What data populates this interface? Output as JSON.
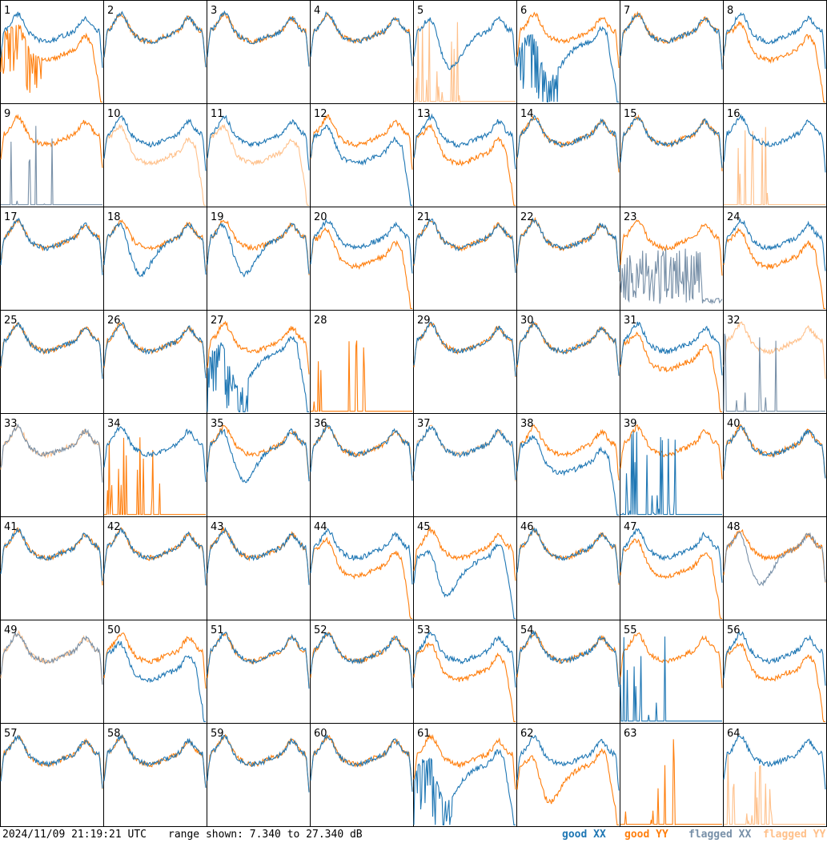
{
  "footer": {
    "timestamp": "2024/11/09 21:19:21 UTC",
    "range": "range shown: 7.340 to 27.340 dB"
  },
  "legend": {
    "good_xx": "good XX",
    "good_yy": "good YY",
    "flagged_xx": "flagged XX",
    "flagged_yy": "flagged YY"
  },
  "colors": {
    "good_xx": "#1f77b4",
    "good_yy": "#ff7f0e",
    "flagged_xx": "#7890a8",
    "flagged_yy": "#ffc08a"
  },
  "chart_data": {
    "type": "line",
    "grid": "8x8 small multiples",
    "ylim": [
      7.34,
      27.34
    ],
    "y_unit": "dB",
    "panels": [
      {
        "n": 1,
        "xx": "good",
        "yy": "good",
        "xx_shape": "flat",
        "yy_shape": "rolloff",
        "yy_noisy": true
      },
      {
        "n": 2,
        "xx": "good",
        "yy": "good",
        "xx_shape": "flat",
        "yy_shape": "flat"
      },
      {
        "n": 3,
        "xx": "good",
        "yy": "good",
        "xx_shape": "flat",
        "yy_shape": "flat"
      },
      {
        "n": 4,
        "xx": "good",
        "yy": "good",
        "xx_shape": "flat",
        "yy_shape": "flat"
      },
      {
        "n": 5,
        "xx": "good",
        "yy": "flagged",
        "xx_shape": "dip",
        "yy_shape": "spikes"
      },
      {
        "n": 6,
        "xx": "good",
        "yy": "good",
        "xx_shape": "dip_rolloff",
        "yy_shape": "flat",
        "xx_noisy": true
      },
      {
        "n": 7,
        "xx": "good",
        "yy": "good",
        "xx_shape": "flat",
        "yy_shape": "flat"
      },
      {
        "n": 8,
        "xx": "good",
        "yy": "good",
        "xx_shape": "flat",
        "yy_shape": "rolloff"
      },
      {
        "n": 9,
        "xx": "flagged",
        "yy": "good",
        "xx_shape": "spikes",
        "yy_shape": "flat"
      },
      {
        "n": 10,
        "xx": "good",
        "yy": "flagged",
        "xx_shape": "flat",
        "yy_shape": "rolloff"
      },
      {
        "n": 11,
        "xx": "good",
        "yy": "flagged",
        "xx_shape": "flat",
        "yy_shape": "rolloff"
      },
      {
        "n": 12,
        "xx": "good",
        "yy": "good",
        "xx_shape": "rolloff",
        "yy_shape": "flat"
      },
      {
        "n": 13,
        "xx": "good",
        "yy": "good",
        "xx_shape": "flat",
        "yy_shape": "rolloff"
      },
      {
        "n": 14,
        "xx": "good",
        "yy": "good",
        "xx_shape": "flat",
        "yy_shape": "flat"
      },
      {
        "n": 15,
        "xx": "good",
        "yy": "good",
        "xx_shape": "flat",
        "yy_shape": "flat"
      },
      {
        "n": 16,
        "xx": "good",
        "yy": "flagged",
        "xx_shape": "flat",
        "yy_shape": "spikes"
      },
      {
        "n": 17,
        "xx": "good",
        "yy": "good",
        "xx_shape": "flat",
        "yy_shape": "flat"
      },
      {
        "n": 18,
        "xx": "good",
        "yy": "good",
        "xx_shape": "dip",
        "yy_shape": "flat"
      },
      {
        "n": 19,
        "xx": "good",
        "yy": "good",
        "xx_shape": "dip",
        "yy_shape": "flat"
      },
      {
        "n": 20,
        "xx": "good",
        "yy": "good",
        "xx_shape": "flat",
        "yy_shape": "rolloff"
      },
      {
        "n": 21,
        "xx": "good",
        "yy": "good",
        "xx_shape": "flat",
        "yy_shape": "flat"
      },
      {
        "n": 22,
        "xx": "good",
        "yy": "good",
        "xx_shape": "flat",
        "yy_shape": "flat"
      },
      {
        "n": 23,
        "xx": "flagged",
        "yy": "good",
        "xx_shape": "noise",
        "yy_shape": "flat"
      },
      {
        "n": 24,
        "xx": "good",
        "yy": "good",
        "xx_shape": "flat",
        "yy_shape": "rolloff"
      },
      {
        "n": 25,
        "xx": "good",
        "yy": "good",
        "xx_shape": "flat",
        "yy_shape": "flat"
      },
      {
        "n": 26,
        "xx": "good",
        "yy": "good",
        "xx_shape": "flat",
        "yy_shape": "flat"
      },
      {
        "n": 27,
        "xx": "good",
        "yy": "good",
        "xx_shape": "dip_rolloff",
        "yy_shape": "flat",
        "xx_noisy": true
      },
      {
        "n": 28,
        "xx": "none",
        "yy": "good",
        "yy_shape": "spikes"
      },
      {
        "n": 29,
        "xx": "good",
        "yy": "good",
        "xx_shape": "flat",
        "yy_shape": "flat"
      },
      {
        "n": 30,
        "xx": "good",
        "yy": "good",
        "xx_shape": "flat",
        "yy_shape": "flat"
      },
      {
        "n": 31,
        "xx": "good",
        "yy": "good",
        "xx_shape": "flat",
        "yy_shape": "rolloff"
      },
      {
        "n": 32,
        "xx": "flagged",
        "yy": "flagged",
        "xx_shape": "spikes",
        "yy_shape": "flat"
      },
      {
        "n": 33,
        "xx": "flagged",
        "yy": "flagged",
        "xx_shape": "flat",
        "yy_shape": "flat"
      },
      {
        "n": 34,
        "xx": "good",
        "yy": "good",
        "xx_shape": "flat",
        "yy_shape": "spikes"
      },
      {
        "n": 35,
        "xx": "good",
        "yy": "good",
        "xx_shape": "dip",
        "yy_shape": "flat"
      },
      {
        "n": 36,
        "xx": "good",
        "yy": "good",
        "xx_shape": "flat",
        "yy_shape": "flat"
      },
      {
        "n": 37,
        "xx": "good",
        "yy": "flagged",
        "xx_shape": "flat",
        "yy_shape": "flat"
      },
      {
        "n": 38,
        "xx": "good",
        "yy": "good",
        "xx_shape": "rolloff",
        "yy_shape": "flat"
      },
      {
        "n": 39,
        "xx": "good",
        "yy": "good",
        "xx_shape": "spikes",
        "yy_shape": "flat"
      },
      {
        "n": 40,
        "xx": "good",
        "yy": "good",
        "xx_shape": "flat",
        "yy_shape": "flat"
      },
      {
        "n": 41,
        "xx": "good",
        "yy": "good",
        "xx_shape": "flat",
        "yy_shape": "flat"
      },
      {
        "n": 42,
        "xx": "good",
        "yy": "good",
        "xx_shape": "flat",
        "yy_shape": "flat"
      },
      {
        "n": 43,
        "xx": "good",
        "yy": "good",
        "xx_shape": "flat",
        "yy_shape": "flat"
      },
      {
        "n": 44,
        "xx": "good",
        "yy": "good",
        "xx_shape": "flat",
        "yy_shape": "rolloff"
      },
      {
        "n": 45,
        "xx": "good",
        "yy": "good",
        "xx_shape": "dip_rolloff",
        "yy_shape": "flat"
      },
      {
        "n": 46,
        "xx": "good",
        "yy": "good",
        "xx_shape": "flat",
        "yy_shape": "flat"
      },
      {
        "n": 47,
        "xx": "good",
        "yy": "good",
        "xx_shape": "flat",
        "yy_shape": "rolloff"
      },
      {
        "n": 48,
        "xx": "flagged",
        "yy": "good",
        "xx_shape": "dip",
        "yy_shape": "flat"
      },
      {
        "n": 49,
        "xx": "flagged",
        "yy": "flagged",
        "xx_shape": "flat",
        "yy_shape": "flat"
      },
      {
        "n": 50,
        "xx": "good",
        "yy": "good",
        "xx_shape": "rolloff",
        "yy_shape": "flat"
      },
      {
        "n": 51,
        "xx": "good",
        "yy": "good",
        "xx_shape": "flat",
        "yy_shape": "flat"
      },
      {
        "n": 52,
        "xx": "good",
        "yy": "good",
        "xx_shape": "flat",
        "yy_shape": "flat"
      },
      {
        "n": 53,
        "xx": "good",
        "yy": "good",
        "xx_shape": "flat",
        "yy_shape": "rolloff"
      },
      {
        "n": 54,
        "xx": "good",
        "yy": "good",
        "xx_shape": "flat",
        "yy_shape": "flat"
      },
      {
        "n": 55,
        "xx": "good",
        "yy": "good",
        "xx_shape": "spikes",
        "yy_shape": "flat"
      },
      {
        "n": 56,
        "xx": "good",
        "yy": "good",
        "xx_shape": "flat",
        "yy_shape": "rolloff"
      },
      {
        "n": 57,
        "xx": "good",
        "yy": "good",
        "xx_shape": "flat",
        "yy_shape": "flat"
      },
      {
        "n": 58,
        "xx": "good",
        "yy": "good",
        "xx_shape": "flat",
        "yy_shape": "flat"
      },
      {
        "n": 59,
        "xx": "good",
        "yy": "good",
        "xx_shape": "flat",
        "yy_shape": "flat"
      },
      {
        "n": 60,
        "xx": "good",
        "yy": "good",
        "xx_shape": "flat",
        "yy_shape": "flat"
      },
      {
        "n": 61,
        "xx": "good",
        "yy": "good",
        "xx_shape": "dip_rolloff",
        "yy_shape": "flat",
        "xx_noisy": true
      },
      {
        "n": 62,
        "xx": "good",
        "yy": "good",
        "xx_shape": "flat",
        "yy_shape": "dip_rolloff"
      },
      {
        "n": 63,
        "xx": "none",
        "yy": "good",
        "yy_shape": "spikes"
      },
      {
        "n": 64,
        "xx": "good",
        "yy": "flagged",
        "xx_shape": "flat",
        "yy_shape": "spikes"
      }
    ]
  }
}
